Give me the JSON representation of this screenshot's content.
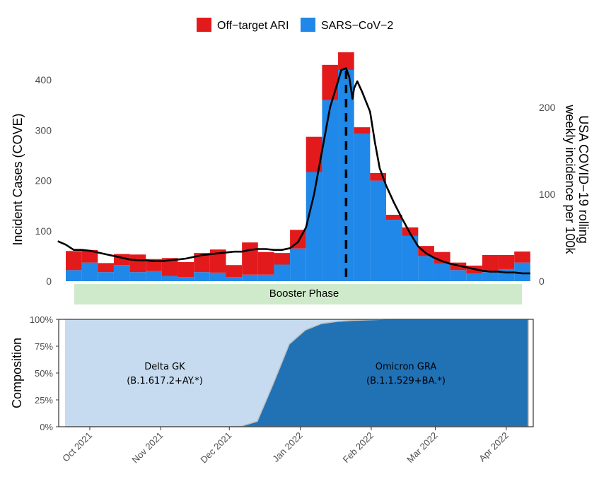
{
  "chart_data": [
    {
      "type": "bar",
      "stacked": true,
      "ylabel": "Incident Cases (COVE)",
      "ylabel_right": [
        "USA COVID−19 rolling",
        "weekly incidence per 100k"
      ],
      "ylim": [
        0,
        460
      ],
      "yticks": [
        0,
        100,
        200,
        300,
        400
      ],
      "ylim_right": [
        0,
        250
      ],
      "yticks_right": [
        0,
        100,
        200
      ],
      "week_start": "2021-09-13",
      "legend": [
        {
          "name": "Off−target ARI",
          "color": "#e31a1c"
        },
        {
          "name": "SARS−CoV−2",
          "color": "#1f88e8"
        }
      ],
      "legend_position": "top",
      "series": [
        {
          "name": "SARS−CoV−2",
          "color": "#1f88e8",
          "values": [
            22,
            37,
            18,
            32,
            18,
            20,
            10,
            8,
            18,
            17,
            8,
            13,
            13,
            33,
            65,
            217,
            360,
            420,
            293,
            200,
            122,
            90,
            50,
            35,
            22,
            15,
            18,
            24,
            37
          ]
        },
        {
          "name": "Off−target ARI",
          "color": "#e31a1c",
          "values": [
            38,
            25,
            18,
            22,
            35,
            24,
            36,
            30,
            38,
            46,
            24,
            64,
            45,
            23,
            37,
            70,
            70,
            35,
            13,
            15,
            10,
            17,
            20,
            23,
            15,
            16,
            34,
            28,
            22
          ]
        }
      ],
      "line": {
        "name": "USA COVID−19 rolling weekly incidence per 100k",
        "color": "#000000",
        "axis": "right",
        "x_week": [
          -0.5,
          0,
          0.5,
          1,
          1.5,
          2,
          2.5,
          3,
          3.5,
          4,
          4.5,
          5,
          5.5,
          6,
          6.5,
          7,
          7.5,
          8,
          8.5,
          9,
          9.5,
          10,
          10.5,
          11,
          11.5,
          12,
          12.5,
          13,
          13.5,
          14,
          14.5,
          15,
          15.5,
          16,
          16.5,
          17,
          17.2,
          17.5,
          17.7,
          17.9,
          18,
          18.2,
          18.5,
          19,
          19.3,
          19.6,
          20,
          20.5,
          21,
          21.5,
          22,
          22.5,
          23,
          23.5,
          24,
          24.5,
          25,
          25.5,
          26,
          26.5,
          27,
          27.5,
          28,
          28.5,
          29
        ],
        "values": [
          46,
          42,
          36,
          36,
          35,
          33,
          31,
          29,
          27,
          25,
          24,
          24,
          23,
          23,
          24,
          25,
          26,
          28,
          30,
          31,
          32,
          33,
          34,
          34,
          36,
          37,
          37,
          36,
          36,
          38,
          45,
          62,
          100,
          150,
          200,
          230,
          243,
          245,
          235,
          210,
          222,
          230,
          218,
          195,
          160,
          130,
          110,
          90,
          72,
          55,
          40,
          32,
          27,
          23,
          20,
          18,
          16,
          14,
          12,
          11,
          11,
          10,
          10,
          9,
          9
        ]
      },
      "annotations": [
        {
          "type": "vline",
          "x_week": 17.5,
          "style": "dashed"
        },
        {
          "type": "band",
          "label": "Booster Phase",
          "color": "#cfeacb"
        }
      ]
    },
    {
      "type": "area",
      "stacked": true,
      "ylabel": "Composition",
      "yticks": [
        "0%",
        "25%",
        "50%",
        "75%",
        "100%"
      ],
      "ylim": [
        0,
        1
      ],
      "series": [
        {
          "name": "Omicron GRA",
          "color": "#2171b5",
          "x_week": [
            0,
            10,
            11,
            12,
            13,
            14,
            15,
            16,
            17,
            18,
            19,
            20,
            22,
            29
          ],
          "values": [
            0,
            0,
            0.005,
            0.05,
            0.4,
            0.77,
            0.9,
            0.96,
            0.98,
            0.99,
            0.995,
            1,
            1,
            1
          ]
        },
        {
          "name": "Delta GK",
          "color": "#c6dbef"
        }
      ],
      "area_labels": [
        {
          "series": "Delta GK",
          "line1": "Delta GK",
          "line2": "(B.1.617.2+AY.*)"
        },
        {
          "series": "Omicron GRA",
          "line1": "Omicron GRA",
          "line2": "(B.1.1.529+BA.*)"
        }
      ],
      "xticks": [
        {
          "label": "Oct 2021",
          "week": 1.5
        },
        {
          "label": "Nov 2021",
          "week": 5.93
        },
        {
          "label": "Dec 2021",
          "week": 10.21
        },
        {
          "label": "Jan 2022",
          "week": 14.64
        },
        {
          "label": "Feb 2022",
          "week": 19.07
        },
        {
          "label": "Mar 2022",
          "week": 23.07
        },
        {
          "label": "Apr 2022",
          "week": 27.5
        }
      ]
    }
  ]
}
